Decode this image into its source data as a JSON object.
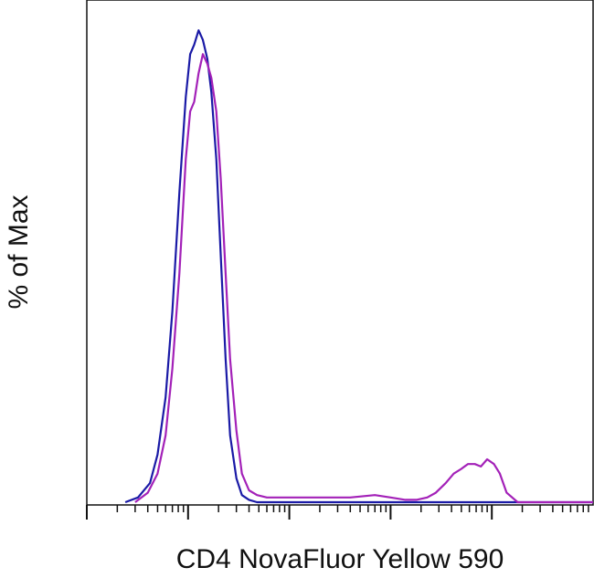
{
  "chart_data": {
    "type": "line",
    "title": "",
    "xlabel": "CD4 NovaFluor Yellow 590",
    "ylabel": "% of Max",
    "xscale": "log",
    "xlim": [
      1,
      100000
    ],
    "ylim": [
      0,
      100
    ],
    "grid": false,
    "legend": "none",
    "series": [
      {
        "color": "#1a1aa6",
        "x": [
          2.4,
          3.2,
          4.2,
          5.0,
          6.0,
          7.0,
          8.2,
          9.5,
          10.5,
          11.5,
          12.7,
          14,
          15.5,
          17,
          19,
          21,
          23.5,
          26,
          30,
          34,
          40,
          48,
          60,
          80,
          120,
          300,
          1000,
          3000,
          8000,
          20000,
          100000
        ],
        "y": [
          0,
          1,
          4,
          10,
          22,
          40,
          65,
          85,
          94,
          96,
          99,
          97,
          93,
          86,
          72,
          52,
          30,
          14,
          5,
          1.5,
          0.5,
          0,
          0,
          0,
          0,
          0,
          0,
          0,
          0,
          0,
          0
        ]
      },
      {
        "color": "#a321b8",
        "x": [
          3.0,
          4.0,
          5.0,
          6.0,
          7.0,
          8.2,
          9.5,
          10.5,
          11.5,
          12.7,
          14,
          15.5,
          17,
          19,
          21,
          23.5,
          26,
          30,
          34,
          40,
          48,
          60,
          100,
          200,
          400,
          700,
          1000,
          1400,
          1800,
          2300,
          2800,
          3500,
          4200,
          5000,
          5800,
          6800,
          7800,
          9000,
          10500,
          12000,
          14000,
          18000,
          30000,
          100000
        ],
        "y": [
          0,
          2,
          6,
          14,
          28,
          48,
          72,
          82,
          84,
          90,
          94,
          92,
          89,
          82,
          68,
          48,
          30,
          15,
          6,
          2.5,
          1.5,
          1,
          1,
          1,
          1,
          1.5,
          1,
          0.5,
          0.5,
          1,
          2,
          4,
          6,
          7,
          8,
          8,
          7.5,
          9,
          8,
          6,
          2,
          0,
          0,
          0
        ]
      }
    ]
  }
}
